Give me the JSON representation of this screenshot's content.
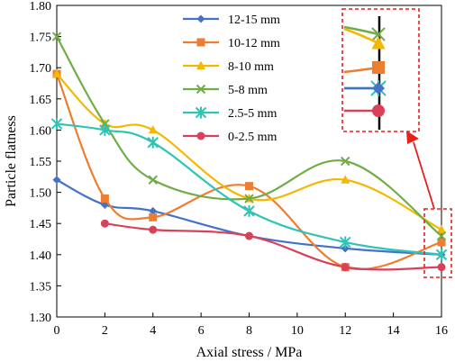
{
  "chart_data": {
    "type": "line",
    "xlabel": "Axial stress / MPa",
    "ylabel": "Particle flatness",
    "xlim": [
      0,
      16
    ],
    "ylim": [
      1.3,
      1.8
    ],
    "x_ticks": [
      "0",
      "2",
      "4",
      "6",
      "8",
      "10",
      "12",
      "14",
      "16"
    ],
    "y_ticks": [
      "1.30",
      "1.35",
      "1.40",
      "1.45",
      "1.50",
      "1.55",
      "1.60",
      "1.65",
      "1.70",
      "1.75",
      "1.80"
    ],
    "grid": false,
    "legend_position": "top-center",
    "inset": "zoomed view of the x = 16 values, linked by an arrow to a dashed box",
    "series": [
      {
        "name": "12-15 mm",
        "color": "#4472C4",
        "marker": "diamond",
        "x": [
          0,
          2,
          4,
          8,
          12,
          16
        ],
        "y": [
          1.52,
          1.48,
          1.47,
          1.43,
          1.41,
          1.4
        ]
      },
      {
        "name": "10-12 mm",
        "color": "#ED7D31",
        "marker": "square",
        "x": [
          0,
          2,
          4,
          8,
          12,
          16
        ],
        "y": [
          1.69,
          1.49,
          1.46,
          1.51,
          1.38,
          1.42
        ]
      },
      {
        "name": "8-10 mm",
        "color": "#F5B800",
        "marker": "triangle",
        "x": [
          0,
          2,
          4,
          8,
          12,
          16
        ],
        "y": [
          1.69,
          1.61,
          1.6,
          1.49,
          1.52,
          1.44
        ]
      },
      {
        "name": "5-8 mm",
        "color": "#70AD47",
        "marker": "x",
        "x": [
          0,
          2,
          4,
          8,
          12,
          16
        ],
        "y": [
          1.75,
          1.61,
          1.52,
          1.49,
          1.55,
          1.43
        ]
      },
      {
        "name": "2.5-5 mm",
        "color": "#2EC4B6",
        "marker": "asterisk",
        "x": [
          0,
          2,
          4,
          8,
          12,
          16
        ],
        "y": [
          1.61,
          1.6,
          1.58,
          1.47,
          1.42,
          1.4
        ]
      },
      {
        "name": "0-2.5 mm",
        "color": "#D9415A",
        "marker": "circle",
        "x": [
          2,
          4,
          8,
          12,
          16
        ],
        "y": [
          1.45,
          1.44,
          1.43,
          1.38,
          1.38
        ]
      }
    ],
    "colors": {
      "highlight": "#E8201C",
      "axis": "#000000"
    }
  }
}
